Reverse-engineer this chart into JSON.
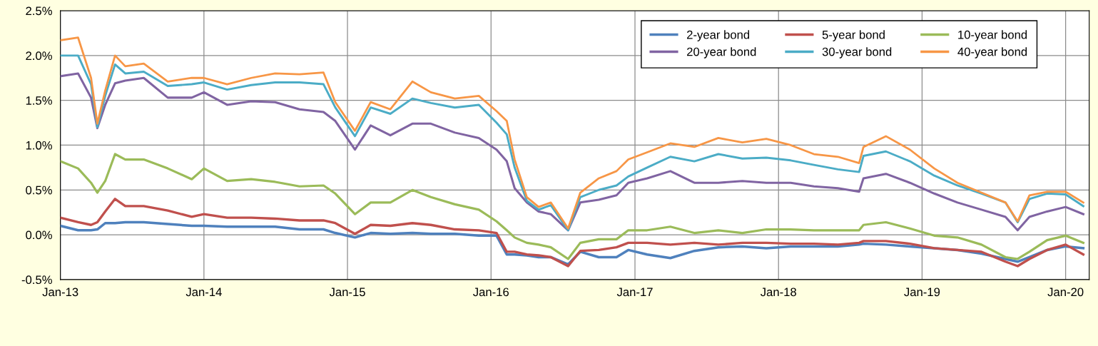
{
  "chart_data": {
    "type": "line",
    "x": [
      "2013-01-01",
      "2013-02-15",
      "2013-03-20",
      "2013-04-05",
      "2013-04-25",
      "2013-05-20",
      "2013-06-15",
      "2013-08-01",
      "2013-10-01",
      "2013-12-01",
      "2014-01-01",
      "2014-03-01",
      "2014-05-01",
      "2014-07-01",
      "2014-09-01",
      "2014-11-01",
      "2014-12-01",
      "2015-01-20",
      "2015-03-01",
      "2015-04-20",
      "2015-06-15",
      "2015-08-01",
      "2015-10-01",
      "2015-12-01",
      "2016-01-15",
      "2016-02-10",
      "2016-03-01",
      "2016-04-01",
      "2016-05-01",
      "2016-06-01",
      "2016-07-15",
      "2016-08-15",
      "2016-10-01",
      "2016-11-15",
      "2016-12-15",
      "2017-02-01",
      "2017-04-01",
      "2017-06-01",
      "2017-08-01",
      "2017-10-01",
      "2017-12-01",
      "2018-02-01",
      "2018-04-01",
      "2018-06-01",
      "2018-07-25",
      "2018-08-05",
      "2018-10-01",
      "2018-12-01",
      "2019-02-01",
      "2019-04-01",
      "2019-06-01",
      "2019-08-01",
      "2019-09-01",
      "2019-10-01",
      "2019-11-15",
      "2020-01-01",
      "2020-02-15"
    ],
    "series": [
      {
        "name": "2-year bond",
        "color": "#4f81bd",
        "values": [
          0.1,
          0.05,
          0.05,
          0.06,
          0.13,
          0.13,
          0.14,
          0.14,
          0.12,
          0.1,
          0.1,
          0.09,
          0.09,
          0.09,
          0.06,
          0.06,
          0.02,
          -0.03,
          0.02,
          0.01,
          0.02,
          0.01,
          0.01,
          -0.01,
          -0.01,
          -0.22,
          -0.22,
          -0.23,
          -0.25,
          -0.25,
          -0.33,
          -0.19,
          -0.25,
          -0.25,
          -0.17,
          -0.22,
          -0.26,
          -0.18,
          -0.14,
          -0.13,
          -0.15,
          -0.13,
          -0.13,
          -0.13,
          -0.11,
          -0.1,
          -0.11,
          -0.13,
          -0.15,
          -0.17,
          -0.21,
          -0.27,
          -0.3,
          -0.25,
          -0.17,
          -0.13,
          -0.15
        ]
      },
      {
        "name": "5-year bond",
        "color": "#c0504d",
        "values": [
          0.19,
          0.14,
          0.11,
          0.14,
          0.26,
          0.4,
          0.32,
          0.32,
          0.27,
          0.2,
          0.23,
          0.19,
          0.19,
          0.18,
          0.16,
          0.16,
          0.13,
          0.01,
          0.11,
          0.1,
          0.13,
          0.11,
          0.06,
          0.05,
          0.02,
          -0.19,
          -0.19,
          -0.22,
          -0.23,
          -0.25,
          -0.35,
          -0.18,
          -0.17,
          -0.14,
          -0.09,
          -0.09,
          -0.11,
          -0.09,
          -0.11,
          -0.09,
          -0.09,
          -0.1,
          -0.1,
          -0.11,
          -0.09,
          -0.07,
          -0.07,
          -0.1,
          -0.15,
          -0.17,
          -0.19,
          -0.3,
          -0.35,
          -0.27,
          -0.17,
          -0.11,
          -0.22
        ]
      },
      {
        "name": "10-year bond",
        "color": "#9bbb59",
        "values": [
          0.82,
          0.74,
          0.58,
          0.47,
          0.6,
          0.9,
          0.84,
          0.84,
          0.74,
          0.62,
          0.74,
          0.6,
          0.62,
          0.59,
          0.54,
          0.55,
          0.46,
          0.23,
          0.36,
          0.36,
          0.5,
          0.42,
          0.34,
          0.28,
          0.15,
          0.05,
          -0.03,
          -0.09,
          -0.11,
          -0.14,
          -0.27,
          -0.09,
          -0.05,
          -0.05,
          0.05,
          0.05,
          0.09,
          0.02,
          0.05,
          0.02,
          0.06,
          0.06,
          0.05,
          0.05,
          0.05,
          0.11,
          0.14,
          0.07,
          -0.01,
          -0.03,
          -0.11,
          -0.25,
          -0.27,
          -0.19,
          -0.06,
          -0.01,
          -0.09
        ]
      },
      {
        "name": "20-year bond",
        "color": "#8064a2",
        "values": [
          1.77,
          1.8,
          1.53,
          1.19,
          1.45,
          1.69,
          1.72,
          1.75,
          1.53,
          1.53,
          1.59,
          1.45,
          1.49,
          1.48,
          1.4,
          1.37,
          1.27,
          0.95,
          1.22,
          1.11,
          1.24,
          1.24,
          1.14,
          1.08,
          0.95,
          0.82,
          0.52,
          0.36,
          0.26,
          0.23,
          0.05,
          0.36,
          0.39,
          0.44,
          0.58,
          0.63,
          0.71,
          0.58,
          0.58,
          0.6,
          0.58,
          0.58,
          0.54,
          0.52,
          0.48,
          0.63,
          0.68,
          0.58,
          0.46,
          0.36,
          0.28,
          0.2,
          0.05,
          0.2,
          0.26,
          0.31,
          0.23
        ]
      },
      {
        "name": "30-year bond",
        "color": "#4bacc6",
        "values": [
          2.0,
          2.0,
          1.68,
          1.2,
          1.55,
          1.9,
          1.8,
          1.82,
          1.66,
          1.68,
          1.7,
          1.62,
          1.67,
          1.7,
          1.7,
          1.68,
          1.42,
          1.1,
          1.42,
          1.35,
          1.52,
          1.47,
          1.42,
          1.45,
          1.25,
          1.12,
          0.75,
          0.38,
          0.28,
          0.33,
          0.05,
          0.42,
          0.5,
          0.55,
          0.65,
          0.75,
          0.87,
          0.82,
          0.9,
          0.85,
          0.86,
          0.83,
          0.78,
          0.73,
          0.7,
          0.88,
          0.93,
          0.82,
          0.66,
          0.55,
          0.46,
          0.36,
          0.14,
          0.4,
          0.46,
          0.45,
          0.32
        ]
      },
      {
        "name": "40-year bond",
        "color": "#f79646",
        "values": [
          2.17,
          2.2,
          1.75,
          1.24,
          1.61,
          2.0,
          1.88,
          1.91,
          1.71,
          1.75,
          1.75,
          1.68,
          1.75,
          1.8,
          1.79,
          1.81,
          1.48,
          1.16,
          1.48,
          1.4,
          1.71,
          1.59,
          1.52,
          1.55,
          1.38,
          1.27,
          0.84,
          0.42,
          0.31,
          0.36,
          0.07,
          0.47,
          0.63,
          0.71,
          0.84,
          0.92,
          1.02,
          0.98,
          1.08,
          1.03,
          1.07,
          1.0,
          0.9,
          0.87,
          0.8,
          0.98,
          1.1,
          0.95,
          0.74,
          0.58,
          0.47,
          0.36,
          0.15,
          0.44,
          0.48,
          0.48,
          0.36
        ]
      }
    ],
    "xlim": [
      "2013-01-01",
      "2020-03-01"
    ],
    "xticks": [
      {
        "value": "2013-01-01",
        "label": "Jan-13"
      },
      {
        "value": "2014-01-01",
        "label": "Jan-14"
      },
      {
        "value": "2015-01-01",
        "label": "Jan-15"
      },
      {
        "value": "2016-01-01",
        "label": "Jan-16"
      },
      {
        "value": "2017-01-01",
        "label": "Jan-17"
      },
      {
        "value": "2018-01-01",
        "label": "Jan-18"
      },
      {
        "value": "2019-01-01",
        "label": "Jan-19"
      },
      {
        "value": "2020-01-01",
        "label": "Jan-20"
      }
    ],
    "ylim": [
      -0.5,
      2.5
    ],
    "yticks": [
      {
        "value": -0.5,
        "label": "-0.5%"
      },
      {
        "value": 0,
        "label": "0.0%"
      },
      {
        "value": 0.5,
        "label": "0.5%"
      },
      {
        "value": 1.0,
        "label": "1.0%"
      },
      {
        "value": 1.5,
        "label": "1.5%"
      },
      {
        "value": 2.0,
        "label": "2.0%"
      },
      {
        "value": 2.5,
        "label": "2.5%"
      }
    ],
    "grid": true,
    "legend": "top right",
    "marker": "none",
    "line_style": "solid"
  }
}
